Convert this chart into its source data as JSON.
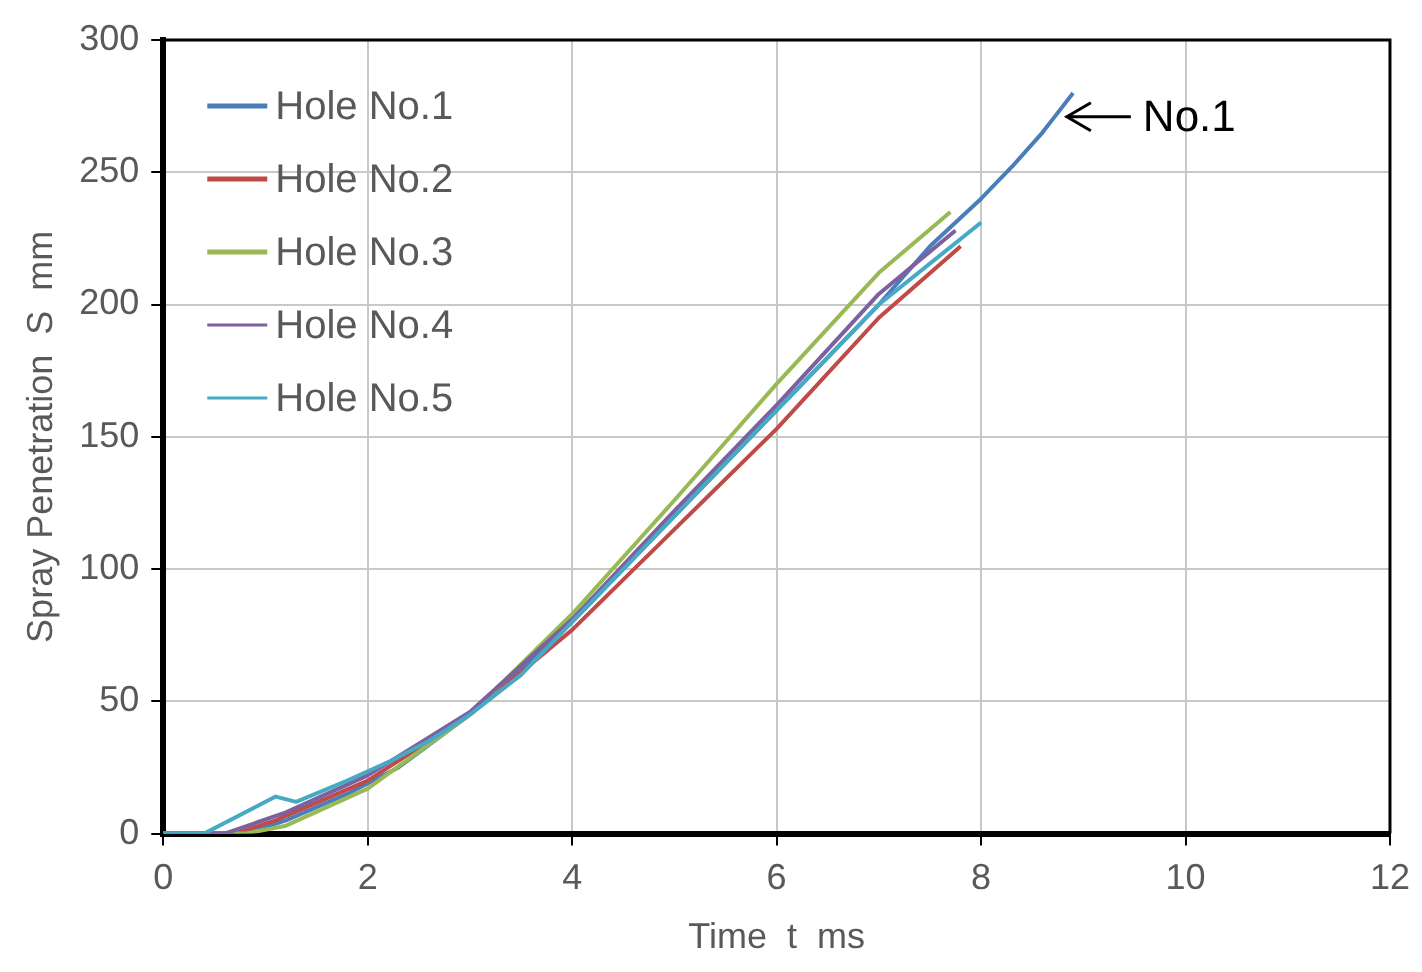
{
  "chart_data": {
    "type": "line",
    "xlabel": "Time  t  ms",
    "ylabel": "Spray Penetration  S  mm",
    "xlim": [
      0,
      12
    ],
    "xticks": [
      0,
      2,
      4,
      6,
      8,
      10,
      12
    ],
    "ylim": [
      0,
      300
    ],
    "yticks": [
      0,
      50,
      100,
      150,
      200,
      250,
      300
    ],
    "grid": true,
    "legend": "top left",
    "marker": "none",
    "line_style": "solid",
    "annotations": [
      {
        "text": "No.1",
        "x": 8.8,
        "y": 271
      }
    ],
    "series": [
      {
        "name": "Hole No.1",
        "color": "#4a7ebb",
        "x": [
          0,
          0.8,
          1.2,
          1.8,
          2.3,
          3,
          4,
          5,
          6,
          7,
          7.5,
          8,
          8.3,
          8.6,
          8.7,
          8.9
        ],
        "values": [
          0,
          0,
          5,
          15,
          25,
          45,
          80,
          120,
          160,
          200,
          222,
          240,
          252,
          265,
          270,
          280
        ]
      },
      {
        "name": "Hole No.2",
        "color": "#be4b48",
        "x": [
          0,
          0.7,
          1.1,
          2,
          3,
          4,
          5,
          6,
          7,
          7.8
        ],
        "values": [
          0,
          0,
          5,
          20,
          45,
          77,
          115,
          153,
          195,
          222
        ]
      },
      {
        "name": "Hole No.3",
        "color": "#98b954",
        "x": [
          0,
          0.8,
          1.2,
          2,
          3,
          4,
          5,
          6,
          7,
          7.7
        ],
        "values": [
          0,
          0,
          3,
          17,
          45,
          83,
          126,
          170,
          212,
          235
        ]
      },
      {
        "name": "Hole No.4",
        "color": "#7d60a0",
        "x": [
          0,
          0.6,
          1.2,
          2,
          3,
          4,
          5,
          6,
          7,
          7.75
        ],
        "values": [
          0,
          0,
          8,
          22,
          46,
          81,
          122,
          162,
          204,
          228
        ]
      },
      {
        "name": "Hole No.5",
        "color": "#46aac5",
        "x": [
          0,
          0.4,
          1.1,
          1.3,
          1.8,
          2.2,
          2.6,
          3,
          3.5,
          4,
          4.5,
          5,
          5.5,
          6,
          6.5,
          7,
          8
        ],
        "values": [
          0,
          0,
          14,
          12,
          20,
          27,
          35,
          45,
          60,
          80,
          100,
          120,
          140,
          160,
          180,
          200,
          231
        ]
      }
    ]
  }
}
